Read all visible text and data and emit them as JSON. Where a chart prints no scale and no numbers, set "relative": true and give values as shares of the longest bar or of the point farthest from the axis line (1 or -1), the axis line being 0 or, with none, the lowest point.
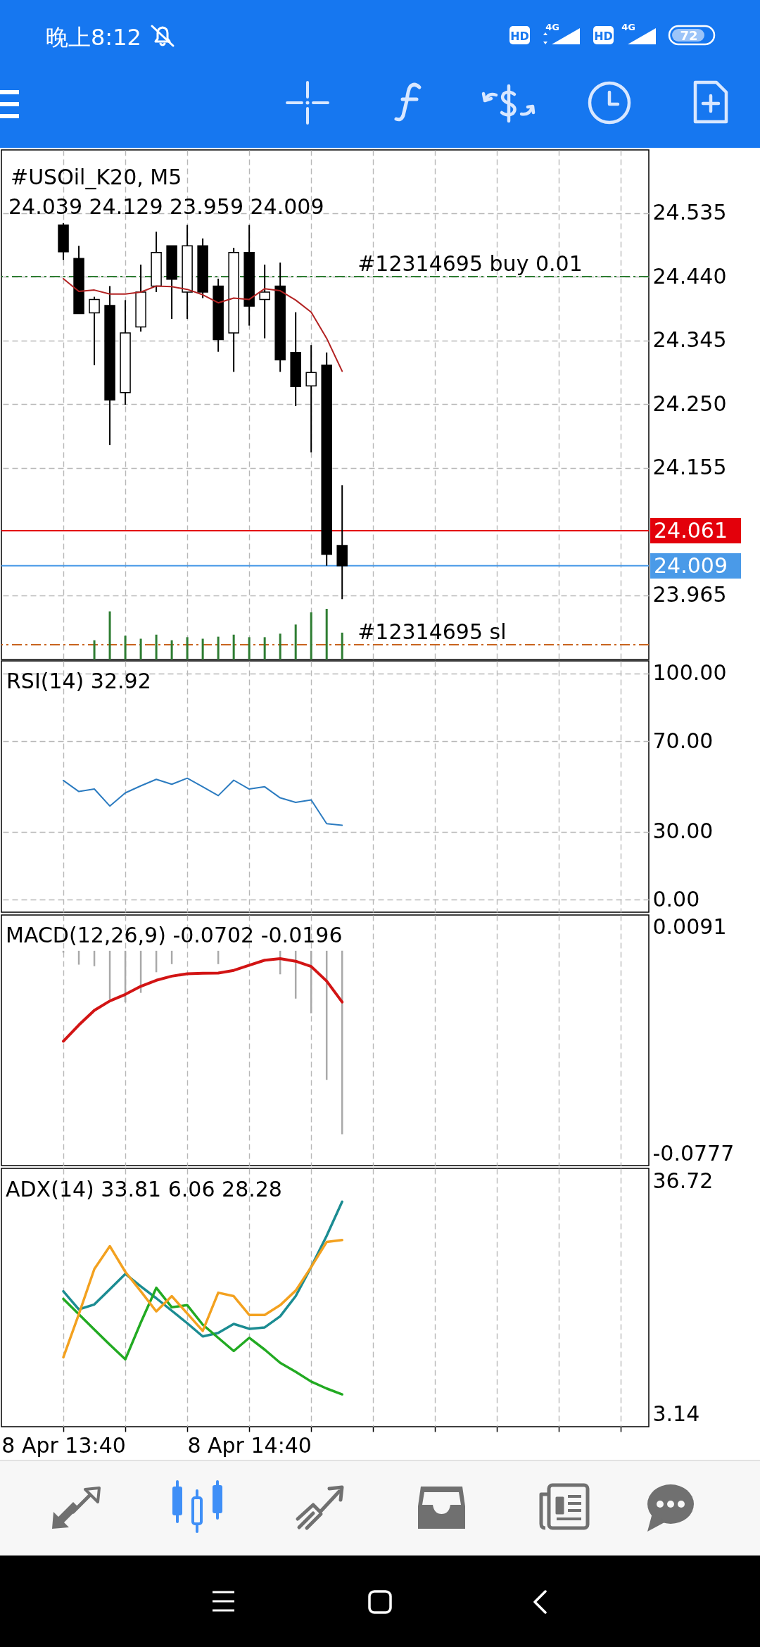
{
  "chart_data": [
    {
      "type": "candlestick",
      "title": "#USOil_K20, M5",
      "subtitle": "24.039 24.129 23.959 24.009",
      "x": [
        "--04-08T13:40",
        "--04-08T13:45",
        "--04-08T13:50",
        "--04-08T13:55",
        "--04-08T14:00",
        "--04-08T14:05",
        "--04-08T14:10",
        "--04-08T14:15",
        "--04-08T14:20",
        "--04-08T14:25",
        "--04-08T14:30",
        "--04-08T14:35",
        "--04-08T14:40",
        "--04-08T14:45",
        "--04-08T14:50",
        "--04-08T14:55",
        "--04-08T15:00",
        "--04-08T15:05",
        "--04-08T15:10"
      ],
      "ohlc": [
        [
          24.517,
          24.52,
          24.465,
          24.477
        ],
        [
          24.467,
          24.486,
          24.385,
          24.385
        ],
        [
          24.386,
          24.41,
          24.308,
          24.406
        ],
        [
          24.397,
          24.426,
          24.189,
          24.256
        ],
        [
          24.267,
          24.405,
          24.249,
          24.356
        ],
        [
          24.365,
          24.458,
          24.358,
          24.417
        ],
        [
          24.426,
          24.507,
          24.417,
          24.476
        ],
        [
          24.486,
          24.486,
          24.377,
          24.436
        ],
        [
          24.417,
          24.517,
          24.377,
          24.486
        ],
        [
          24.486,
          24.497,
          24.408,
          24.417
        ],
        [
          24.426,
          24.437,
          24.328,
          24.346
        ],
        [
          24.356,
          24.483,
          24.298,
          24.476
        ],
        [
          24.476,
          24.517,
          24.367,
          24.396
        ],
        [
          24.406,
          24.458,
          24.348,
          24.417
        ],
        [
          24.426,
          24.461,
          24.298,
          24.316
        ],
        [
          24.327,
          24.387,
          24.247,
          24.276
        ],
        [
          24.277,
          24.338,
          24.178,
          24.297
        ],
        [
          24.308,
          24.327,
          24.009,
          24.026
        ],
        [
          24.039,
          24.129,
          23.959,
          24.009
        ]
      ],
      "series": [
        {
          "type": "line",
          "color": "#b22222",
          "values": [
            24.437,
            24.418,
            24.42,
            24.414,
            24.414,
            24.417,
            24.426,
            24.425,
            24.421,
            24.413,
            24.401,
            24.408,
            24.406,
            24.422,
            24.419,
            24.405,
            24.387,
            24.348,
            24.299
          ]
        }
      ],
      "xlim": [
        "--04-08T13:20",
        "--04-08T16:49"
      ],
      "xticks": [
        "--04-08T13:40",
        "--04-08T14:00",
        "--04-08T14:20",
        "--04-08T14:40",
        "--04-08T15:00",
        "--04-08T15:20",
        "--04-08T15:40",
        "--04-08T16:00",
        "--04-08T16:20",
        "--04-08T16:40"
      ],
      "ylim": [
        23.869,
        24.629
      ],
      "yticks": [
        23.965,
        24.155,
        {
          "value": 24.25,
          "label": "24.250"
        },
        24.345,
        {
          "value": 24.44,
          "label": "24.440"
        },
        24.535
      ],
      "ref_lines": [
        {
          "axis": "y",
          "value": 24.44,
          "label": "#12314695 buy 0.01",
          "color": "#2e7d32",
          "line_style": "dashed"
        },
        {
          "axis": "y",
          "value": 24.061,
          "label": "24.061",
          "color": "#e3000b",
          "line_style": "solid"
        },
        {
          "axis": "y",
          "value": 24.009,
          "label": "24.009",
          "color": "#4a9ae8",
          "line_style": "solid"
        },
        {
          "axis": "y",
          "value": 23.891,
          "label": "#12314695 sl",
          "color": "#c8641e",
          "line_style": "dashed"
        }
      ],
      "grid": true,
      "tick_labels": "y",
      "annotations": [
        "晚上8:12",
        "HD",
        "4G",
        "HD",
        "4G",
        "72"
      ]
    },
    {
      "type": "bar",
      "relative": true,
      "x": [
        "--04-08T13:50",
        "--04-08T13:55",
        "--04-08T14:00",
        "--04-08T14:05",
        "--04-08T14:10",
        "--04-08T14:15",
        "--04-08T14:20",
        "--04-08T14:25",
        "--04-08T14:30",
        "--04-08T14:35",
        "--04-08T14:40",
        "--04-08T14:45",
        "--04-08T14:50",
        "--04-08T14:55",
        "--04-08T15:00",
        "--04-08T15:05",
        "--04-08T15:10"
      ],
      "xlim": [
        "--04-08T13:20",
        "--04-08T16:49"
      ],
      "values": [
        0.38,
        0.95,
        0.47,
        0.41,
        0.49,
        0.38,
        0.44,
        0.41,
        0.45,
        0.49,
        0.44,
        0.44,
        0.51,
        0.69,
        0.93,
        1,
        0.53
      ],
      "color": "#2e7d32",
      "tick_labels": false
    },
    {
      "type": "line",
      "title": "RSI(14) 32.92",
      "x": [
        "--04-08T13:40",
        "--04-08T13:45",
        "--04-08T13:50",
        "--04-08T13:55",
        "--04-08T14:00",
        "--04-08T14:05",
        "--04-08T14:10",
        "--04-08T14:15",
        "--04-08T14:20",
        "--04-08T14:25",
        "--04-08T14:30",
        "--04-08T14:35",
        "--04-08T14:40",
        "--04-08T14:45",
        "--04-08T14:50",
        "--04-08T14:55",
        "--04-08T15:00",
        "--04-08T15:05",
        "--04-08T15:10"
      ],
      "values": [
        52.7,
        47.8,
        48.9,
        41.4,
        47.2,
        50.3,
        53.2,
        51.0,
        53.7,
        49.9,
        46.0,
        52.8,
        48.9,
        49.9,
        45.0,
        43.0,
        44.1,
        33.6,
        32.9
      ],
      "color": "#2b7bc0",
      "xlim": [
        "--04-08T13:20",
        "--04-08T16:49"
      ],
      "xticks": [
        "--04-08T13:40",
        "--04-08T14:00",
        "--04-08T14:20",
        "--04-08T14:40",
        "--04-08T15:00",
        "--04-08T15:20",
        "--04-08T15:40",
        "--04-08T16:00",
        "--04-08T16:20",
        "--04-08T16:40"
      ],
      "ylim": [
        -5.5,
        105.5
      ],
      "yticks": [
        {
          "value": 0,
          "label": "0.00"
        },
        {
          "value": 30,
          "label": "30.00"
        },
        {
          "value": 70,
          "label": "70.00"
        },
        {
          "value": 100,
          "label": "100.00"
        }
      ],
      "grid": true,
      "tick_labels": "y"
    },
    {
      "type": "bar",
      "title": "MACD(12,26,9) -0.0702 -0.0196",
      "x": [
        "--04-08T13:40",
        "--04-08T13:45",
        "--04-08T13:50",
        "--04-08T13:55",
        "--04-08T14:00",
        "--04-08T14:05",
        "--04-08T14:10",
        "--04-08T14:15",
        "--04-08T14:20",
        "--04-08T14:25",
        "--04-08T14:30",
        "--04-08T14:35",
        "--04-08T14:40",
        "--04-08T14:45",
        "--04-08T14:50",
        "--04-08T14:55",
        "--04-08T15:00",
        "--04-08T15:05",
        "--04-08T15:10"
      ],
      "series": [
        {
          "type": "bar",
          "color": "#a9a9a9",
          "values": [
            -0.0007,
            -0.0053,
            -0.0059,
            -0.0185,
            -0.0197,
            -0.0161,
            -0.0082,
            -0.0051,
            null,
            null,
            -0.0051,
            null,
            null,
            null,
            -0.009,
            -0.0183,
            -0.0239,
            -0.0494,
            -0.0702
          ]
        },
        {
          "type": "line",
          "color": "#d21414",
          "values": [
            -0.0346,
            -0.0284,
            -0.0228,
            -0.0192,
            -0.0167,
            -0.0136,
            -0.0113,
            -0.0097,
            -0.0088,
            -0.0086,
            -0.0085,
            -0.0075,
            -0.0055,
            -0.0036,
            -0.003,
            -0.004,
            -0.006,
            -0.0116,
            -0.0196
          ]
        }
      ],
      "xlim": [
        "--04-08T13:20",
        "--04-08T16:49"
      ],
      "xticks": [
        "--04-08T13:40",
        "--04-08T14:00",
        "--04-08T14:20",
        "--04-08T14:40",
        "--04-08T15:00",
        "--04-08T15:20",
        "--04-08T15:40",
        "--04-08T16:00",
        "--04-08T16:20",
        "--04-08T16:40"
      ],
      "ylim": [
        -0.0822,
        0.0137
      ],
      "yticks": [
        -0.0777,
        0.0091
      ],
      "grid": "x",
      "tick_labels": "y"
    },
    {
      "type": "line",
      "title": "ADX(14) 33.81 6.06 28.28",
      "x": [
        "--04-08T13:40",
        "--04-08T13:45",
        "--04-08T13:50",
        "--04-08T13:55",
        "--04-08T14:00",
        "--04-08T14:05",
        "--04-08T14:10",
        "--04-08T14:15",
        "--04-08T14:20",
        "--04-08T14:25",
        "--04-08T14:30",
        "--04-08T14:35",
        "--04-08T14:40",
        "--04-08T14:45",
        "--04-08T14:50",
        "--04-08T14:55",
        "--04-08T15:00",
        "--04-08T15:05",
        "--04-08T15:10"
      ],
      "series": [
        {
          "color": "#1b8c92",
          "values": [
            20.9,
            18.3,
            19.0,
            21.2,
            23.4,
            21.6,
            19.9,
            18.1,
            16.3,
            14.4,
            14.9,
            16.2,
            15.5,
            15.7,
            17.3,
            20.2,
            24.4,
            28.9,
            33.81
          ]
        },
        {
          "color": "#22aa22",
          "values": [
            19.8,
            17.6,
            15.4,
            13.2,
            11.1,
            16.4,
            21.4,
            18.6,
            18.9,
            16.1,
            14.2,
            12.3,
            14.2,
            12.5,
            10.6,
            9.3,
            7.9,
            6.9,
            6.06
          ]
        },
        {
          "color": "#f3a11f",
          "values": [
            11.4,
            17.6,
            24.1,
            27.4,
            23.7,
            20.9,
            18.0,
            20.2,
            17.7,
            15.2,
            20.7,
            20.2,
            17.5,
            17.5,
            18.9,
            21.0,
            24.4,
            28.0,
            28.28
          ]
        }
      ],
      "xlim": [
        "--04-08T13:20",
        "--04-08T16:49"
      ],
      "xticks": [
        {
          "value": "--04-08T13:40",
          "label": "8 Apr 13:40"
        },
        {
          "value": "--04-08T14:00",
          "label": null
        },
        {
          "value": "--04-08T14:20",
          "label": null
        },
        {
          "value": "--04-08T14:40",
          "label": "8 Apr 14:40"
        },
        {
          "value": "--04-08T15:00",
          "label": null
        },
        {
          "value": "--04-08T15:20",
          "label": null
        },
        {
          "value": "--04-08T15:40",
          "label": null
        },
        {
          "value": "--04-08T16:00",
          "label": null
        },
        {
          "value": "--04-08T16:20",
          "label": null
        },
        {
          "value": "--04-08T16:40",
          "label": null
        }
      ],
      "ylim": [
        1.4,
        38.6
      ],
      "yticks": [
        3.14,
        36.72
      ],
      "grid": "x"
    }
  ]
}
